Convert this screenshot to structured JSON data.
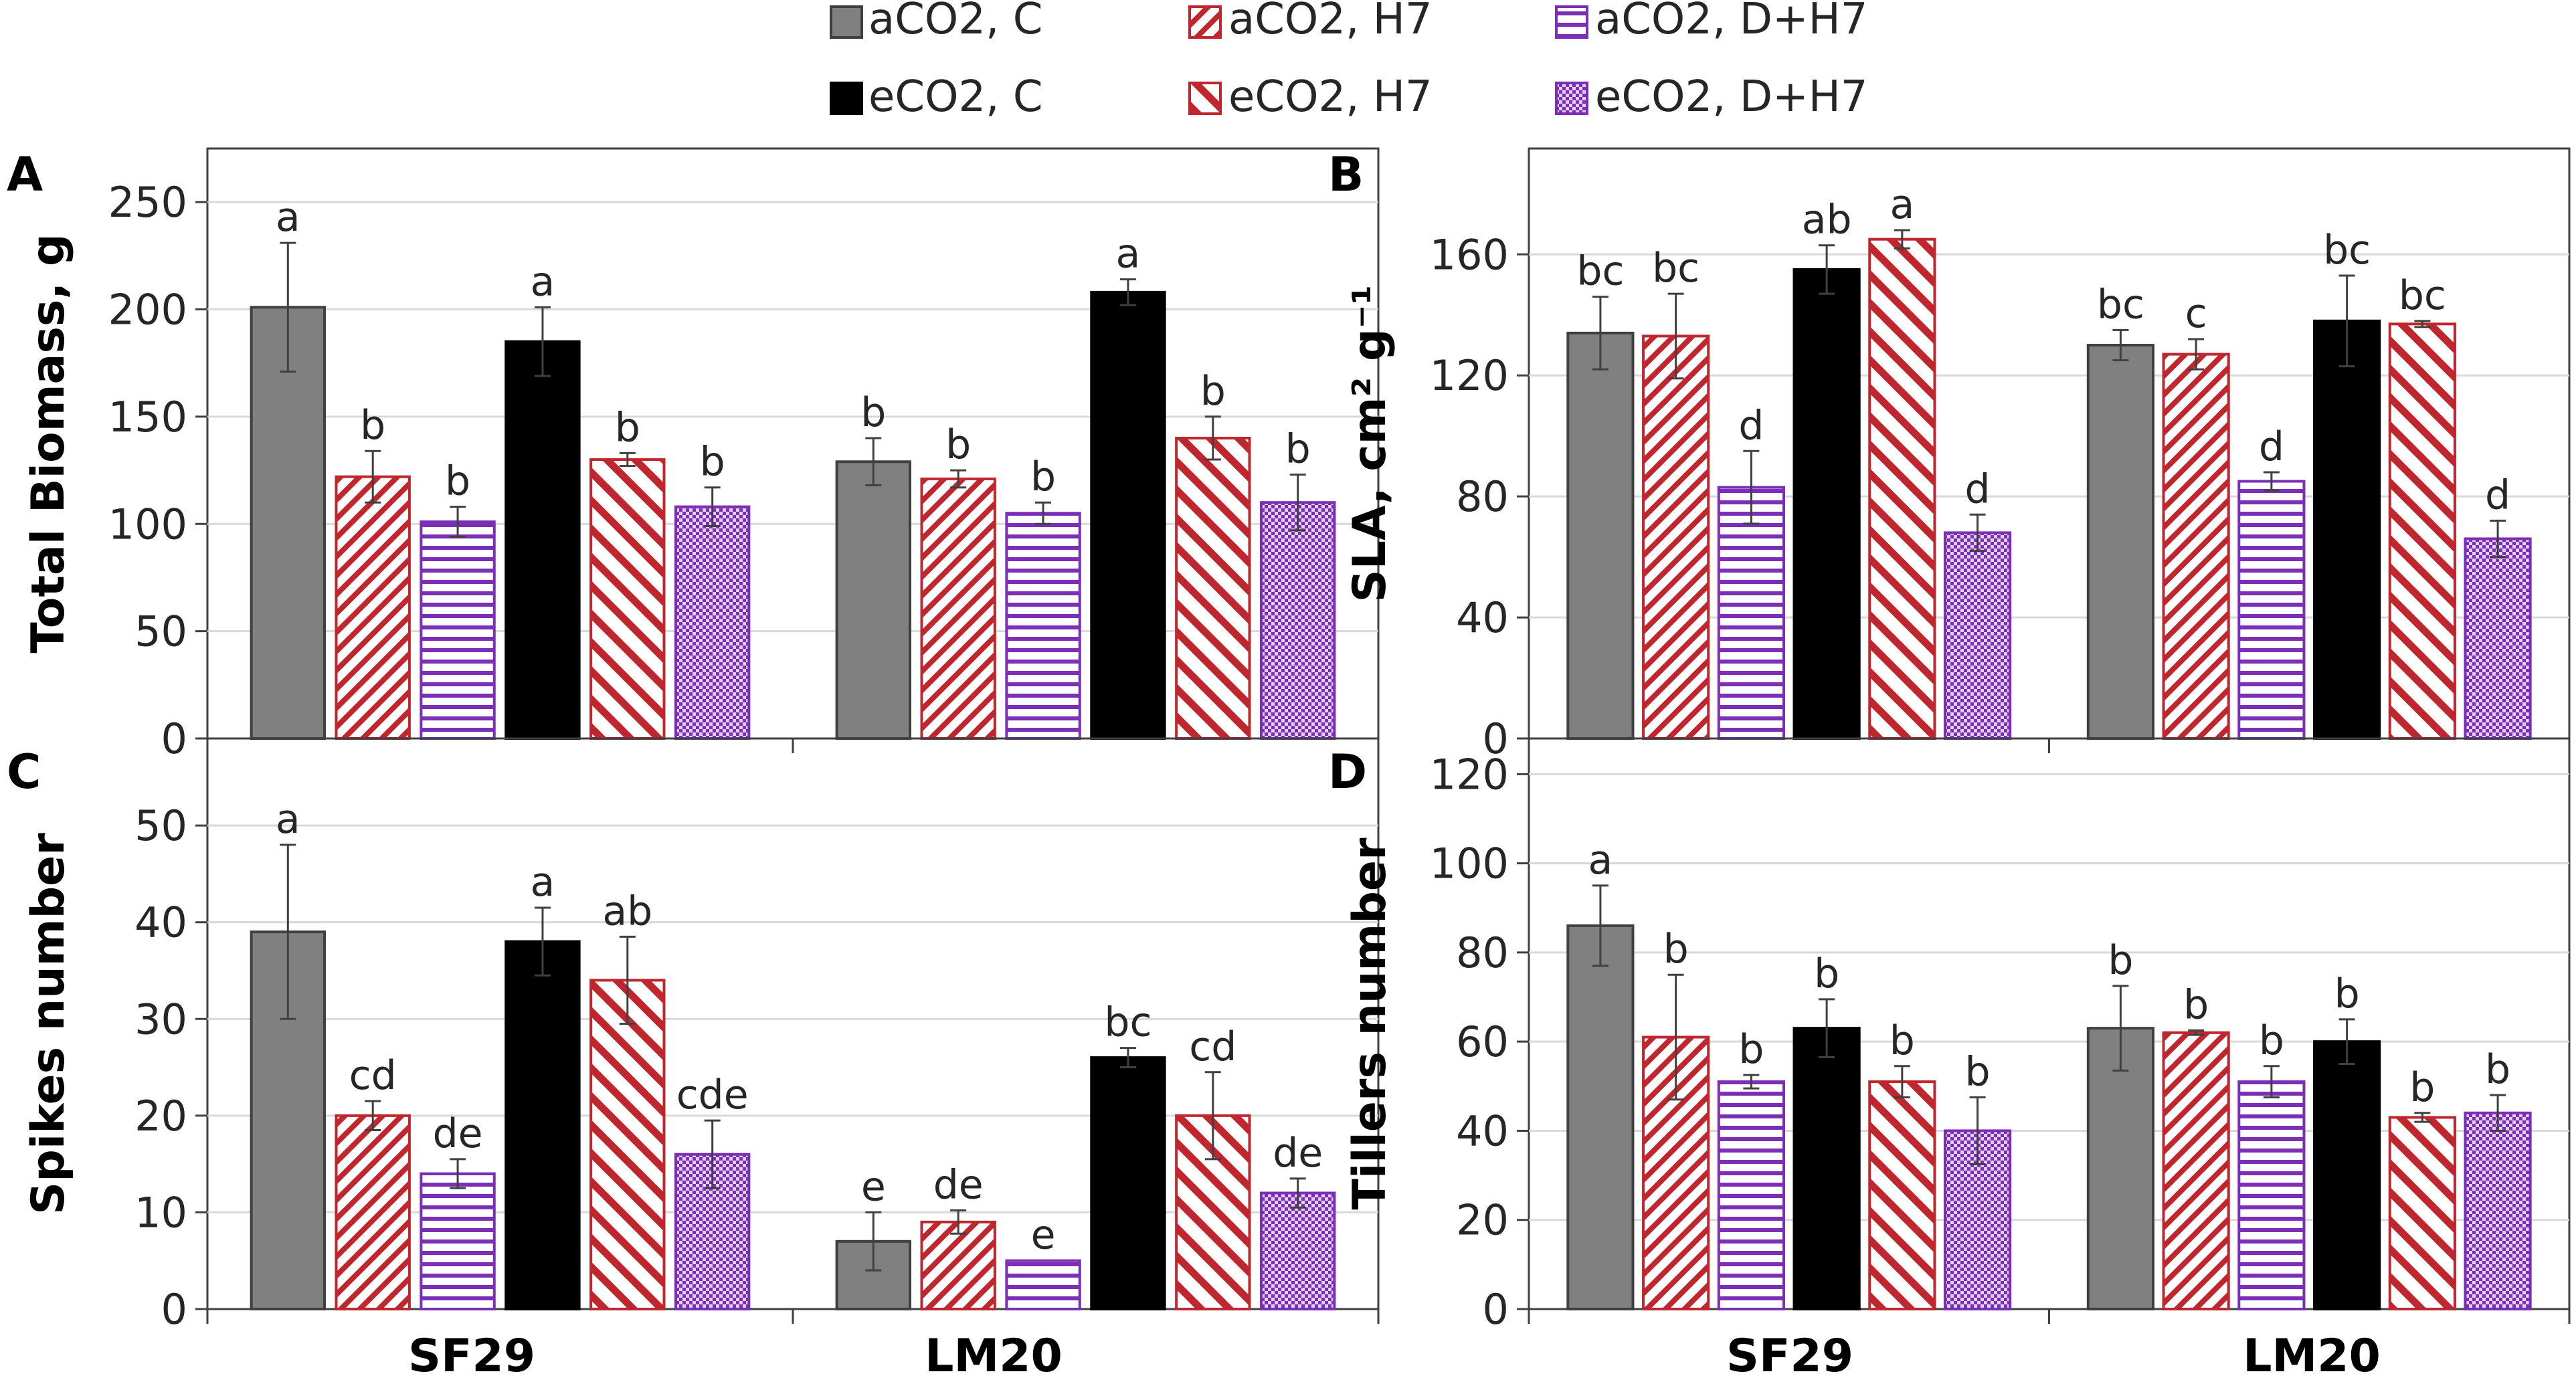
{
  "legend": {
    "entries": [
      {
        "key": "aC",
        "label": "aCO2, C"
      },
      {
        "key": "aH",
        "label": "aCO2, H7"
      },
      {
        "key": "aD",
        "label": "aCO2, D+H7"
      },
      {
        "key": "eC",
        "label": "eCO2, C"
      },
      {
        "key": "eH",
        "label": "eCO2, H7"
      },
      {
        "key": "eD",
        "label": "eCO2, D+H7"
      }
    ]
  },
  "colors": {
    "gray_fill": "#808080",
    "black_fill": "#000000",
    "red_hatch": "#c0262d",
    "purple_hatch": "#7a2fb6",
    "grid": "#d9d9d9",
    "axis": "#404040"
  },
  "chart_data": [
    {
      "panel": "A",
      "type": "bar",
      "ylabel": "Total Biomass, g",
      "ylim": [
        0,
        275
      ],
      "yticks": [
        0,
        50,
        100,
        150,
        200,
        250
      ],
      "categories": [
        "SF29",
        "LM20"
      ],
      "series": [
        {
          "name": "aCO2, C",
          "values": [
            201,
            129
          ],
          "errors": [
            30,
            11
          ],
          "letters": [
            "a",
            "b"
          ]
        },
        {
          "name": "aCO2, H7",
          "values": [
            122,
            121
          ],
          "errors": [
            12,
            4
          ],
          "letters": [
            "b",
            "b"
          ]
        },
        {
          "name": "aCO2, D+H7",
          "values": [
            101,
            105
          ],
          "errors": [
            7,
            5
          ],
          "letters": [
            "b",
            "b"
          ]
        },
        {
          "name": "eCO2, C",
          "values": [
            185,
            208
          ],
          "errors": [
            16,
            6
          ],
          "letters": [
            "a",
            "a"
          ]
        },
        {
          "name": "eCO2, H7",
          "values": [
            130,
            140
          ],
          "errors": [
            3,
            10
          ],
          "letters": [
            "b",
            "b"
          ]
        },
        {
          "name": "eCO2, D+H7",
          "values": [
            108,
            110
          ],
          "errors": [
            9,
            13
          ],
          "letters": [
            "b",
            "b"
          ]
        }
      ]
    },
    {
      "panel": "B",
      "type": "bar",
      "ylabel": "SLA, cm² g⁻¹",
      "ylim": [
        0,
        195
      ],
      "yticks": [
        0,
        40,
        80,
        120,
        160
      ],
      "categories": [
        "SF29",
        "LM20"
      ],
      "series": [
        {
          "name": "aCO2, C",
          "values": [
            134,
            130
          ],
          "errors": [
            12,
            5
          ],
          "letters": [
            "bc",
            "bc"
          ]
        },
        {
          "name": "aCO2, H7",
          "values": [
            133,
            127
          ],
          "errors": [
            14,
            5
          ],
          "letters": [
            "bc",
            "c"
          ]
        },
        {
          "name": "aCO2, D+H7",
          "values": [
            83,
            85
          ],
          "errors": [
            12,
            3
          ],
          "letters": [
            "d",
            "d"
          ]
        },
        {
          "name": "eCO2, C",
          "values": [
            155,
            138
          ],
          "errors": [
            8,
            15
          ],
          "letters": [
            "ab",
            "bc"
          ]
        },
        {
          "name": "eCO2, H7",
          "values": [
            165,
            137
          ],
          "errors": [
            3,
            1
          ],
          "letters": [
            "a",
            "bc"
          ]
        },
        {
          "name": "eCO2, D+H7",
          "values": [
            68,
            66
          ],
          "errors": [
            6,
            6
          ],
          "letters": [
            "d",
            "d"
          ]
        }
      ]
    },
    {
      "panel": "C",
      "type": "bar",
      "ylabel": "Spikes number",
      "ylim": [
        0,
        59
      ],
      "yticks": [
        0,
        10,
        20,
        30,
        40,
        50
      ],
      "categories": [
        "SF29",
        "LM20"
      ],
      "series": [
        {
          "name": "aCO2, C",
          "values": [
            39,
            7
          ],
          "errors": [
            9,
            3
          ],
          "letters": [
            "a",
            "e"
          ]
        },
        {
          "name": "aCO2, H7",
          "values": [
            20,
            9
          ],
          "errors": [
            1.5,
            1.2
          ],
          "letters": [
            "cd",
            "de"
          ]
        },
        {
          "name": "aCO2, D+H7",
          "values": [
            14,
            5
          ],
          "errors": [
            1.5,
            0
          ],
          "letters": [
            "de",
            "e"
          ]
        },
        {
          "name": "eCO2, C",
          "values": [
            38,
            26
          ],
          "errors": [
            3.5,
            1
          ],
          "letters": [
            "a",
            "bc"
          ]
        },
        {
          "name": "eCO2, H7",
          "values": [
            34,
            20
          ],
          "errors": [
            4.5,
            4.5
          ],
          "letters": [
            "ab",
            "cd"
          ]
        },
        {
          "name": "eCO2, D+H7",
          "values": [
            16,
            12
          ],
          "errors": [
            3.5,
            1.5
          ],
          "letters": [
            "cde",
            "de"
          ]
        }
      ]
    },
    {
      "panel": "D",
      "type": "bar",
      "ylabel": "Tillers number",
      "ylim": [
        0,
        128
      ],
      "yticks": [
        0,
        20,
        40,
        60,
        80,
        100,
        120
      ],
      "categories": [
        "SF29",
        "LM20"
      ],
      "series": [
        {
          "name": "aCO2, C",
          "values": [
            86,
            63
          ],
          "errors": [
            9,
            9.5
          ],
          "letters": [
            "a",
            "b"
          ]
        },
        {
          "name": "aCO2, H7",
          "values": [
            61,
            62
          ],
          "errors": [
            14,
            0.5
          ],
          "letters": [
            "b",
            "b"
          ]
        },
        {
          "name": "aCO2, D+H7",
          "values": [
            51,
            51
          ],
          "errors": [
            1.5,
            3.5
          ],
          "letters": [
            "b",
            "b"
          ]
        },
        {
          "name": "eCO2, C",
          "values": [
            63,
            60
          ],
          "errors": [
            6.5,
            5
          ],
          "letters": [
            "b",
            "b"
          ]
        },
        {
          "name": "eCO2, H7",
          "values": [
            51,
            43
          ],
          "errors": [
            3.5,
            1
          ],
          "letters": [
            "b",
            "b"
          ]
        },
        {
          "name": "eCO2, D+H7",
          "values": [
            40,
            44
          ],
          "errors": [
            7.5,
            4
          ],
          "letters": [
            "b",
            "b"
          ]
        }
      ]
    }
  ]
}
